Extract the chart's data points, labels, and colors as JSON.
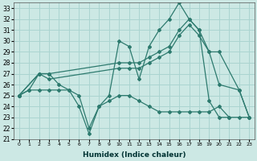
{
  "xlabel": "Humidex (Indice chaleur)",
  "background_color": "#cce8e4",
  "grid_color": "#aad4d0",
  "line_color": "#2d7a6e",
  "xlim": [
    -0.5,
    23.5
  ],
  "ylim": [
    21,
    33.5
  ],
  "xticks": [
    0,
    1,
    2,
    3,
    4,
    5,
    6,
    7,
    8,
    9,
    10,
    11,
    12,
    13,
    14,
    15,
    16,
    17,
    18,
    19,
    20,
    21,
    22,
    23
  ],
  "yticks": [
    21,
    22,
    23,
    24,
    25,
    26,
    27,
    28,
    29,
    30,
    31,
    32,
    33
  ],
  "series": [
    {
      "x": [
        0,
        1,
        2,
        3,
        4,
        5,
        6,
        7,
        8,
        9,
        10,
        11,
        12,
        13,
        14,
        15,
        16,
        17,
        18,
        19,
        20,
        21,
        22,
        23
      ],
      "y": [
        25,
        25.5,
        27,
        27,
        26,
        25.5,
        24,
        21.5,
        24,
        25,
        30,
        29.5,
        26.5,
        29.5,
        31,
        32,
        33.5,
        32,
        31,
        24.5,
        23,
        23,
        null,
        null
      ]
    },
    {
      "x": [
        0,
        2,
        3,
        10,
        11,
        12,
        13,
        14,
        15,
        16,
        17,
        18,
        19,
        20,
        22,
        23
      ],
      "y": [
        25,
        27,
        27,
        28,
        28,
        28,
        28.5,
        29,
        29.5,
        31,
        32,
        31,
        29,
        29,
        25.5,
        23
      ]
    },
    {
      "x": [
        0,
        2,
        3,
        10,
        11,
        12,
        13,
        14,
        15,
        16,
        17,
        18,
        19,
        20,
        22,
        23
      ],
      "y": [
        25,
        27,
        26.5,
        27.5,
        27.5,
        27.5,
        28,
        28.5,
        29,
        30.5,
        31.5,
        30.5,
        29,
        26,
        25.5,
        23
      ]
    },
    {
      "x": [
        0,
        1,
        2,
        3,
        4,
        5,
        6,
        7,
        8,
        9,
        10,
        11,
        12,
        13,
        14,
        15,
        16,
        17,
        18,
        19,
        20,
        21,
        22,
        23
      ],
      "y": [
        25,
        25.5,
        25.5,
        25.5,
        25.5,
        25.5,
        25,
        22,
        24,
        24.5,
        25,
        25,
        24.5,
        24,
        23.5,
        23.5,
        23.5,
        23.5,
        23.5,
        23.5,
        24,
        23,
        23,
        23
      ]
    }
  ]
}
